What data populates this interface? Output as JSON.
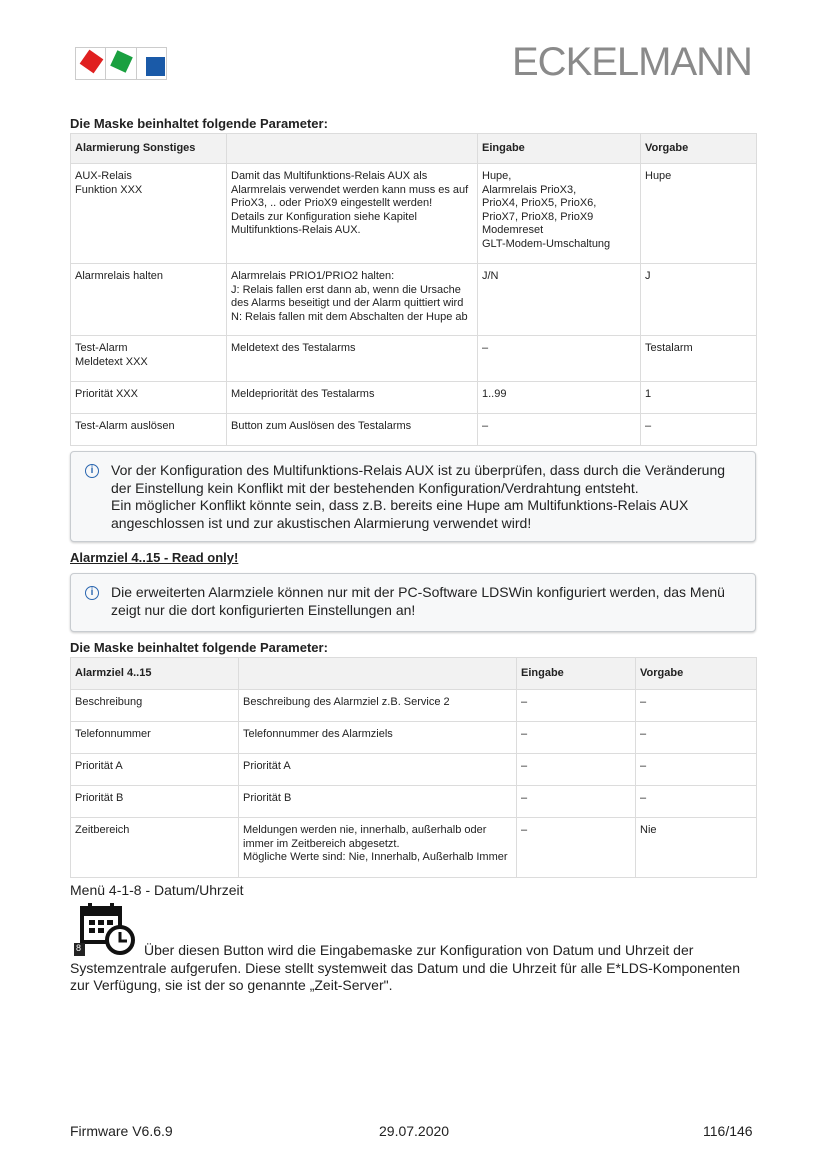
{
  "header": {
    "brand": "ECKELMANN",
    "logo_colors": [
      "#e02020",
      "#1aa040",
      "#1a5aa8"
    ]
  },
  "section1": {
    "heading": "Die Maske beinhaltet folgende Parameter:",
    "columns": [
      "Alarmierung Sonstiges",
      "",
      "Eingabe",
      "Vorgabe"
    ],
    "rows": [
      [
        "AUX-Relais\nFunktion XXX",
        "Damit das Multifunktions-Relais AUX als\nAlarmrelais verwendet werden kann muss es auf\nPrioX3, .. oder PrioX9 eingestellt werden!\nDetails zur Konfiguration siehe Kapitel\nMultifunktions-Relais AUX.",
        "Hupe,\nAlarmrelais PrioX3,\nPrioX4, PrioX5, PrioX6,\nPrioX7, PrioX8, PrioX9\nModemreset\nGLT-Modem-Umschaltung",
        "Hupe"
      ],
      [
        "Alarmrelais halten",
        "Alarmrelais PRIO1/PRIO2 halten:\nJ: Relais fallen erst dann ab, wenn die Ursache\ndes Alarms beseitigt und der Alarm quittiert wird\nN: Relais fallen mit dem Abschalten der Hupe ab",
        "J/N",
        "J"
      ],
      [
        "Test-Alarm\nMeldetext XXX",
        "Meldetext des Testalarms",
        "–",
        "Testalarm"
      ],
      [
        "Priorität XXX",
        "Meldepriorität des Testalarms",
        "1..99",
        "1"
      ],
      [
        "Test-Alarm auslösen",
        "Button zum Auslösen des Testalarms",
        "–",
        "–"
      ]
    ]
  },
  "info1": "Vor der Konfiguration des Multifunktions-Relais AUX ist zu überprüfen, dass durch die Veränderung der Einstellung kein Konflikt mit der bestehenden Konfiguration/Verdrahtung entsteht.\nEin möglicher Konflikt könnte sein, dass z.B. bereits eine Hupe am Multifunktions-Relais AUX angeschlossen ist und zur akustischen Alarmierung verwendet wird!",
  "alarmziel_heading": "Alarmziel 4..15 - Read only!",
  "info2": "Die erweiterten Alarmziele können nur mit der PC-Software LDSWin konfiguriert werden, das Menü zeigt nur die dort konfigurierten Einstellungen an!",
  "section2": {
    "heading": "Die Maske beinhaltet folgende Parameter:",
    "columns": [
      "Alarmziel 4..15",
      "",
      "Eingabe",
      "Vorgabe"
    ],
    "rows": [
      [
        "Beschreibung",
        "Beschreibung des Alarmziel z.B. Service 2",
        "–",
        "–"
      ],
      [
        "Telefonnummer",
        "Telefonnummer des Alarmziels",
        "–",
        "–"
      ],
      [
        "Priorität A",
        "Priorität A",
        "–",
        "–"
      ],
      [
        "Priorität B",
        "Priorität B",
        "–",
        "–"
      ],
      [
        "Zeitbereich",
        "Meldungen werden nie, innerhalb, außerhalb oder\nimmer im Zeitbereich abgesetzt.\nMögliche Werte sind: Nie, Innerhalb, Außerhalb Immer",
        "–",
        "Nie"
      ]
    ]
  },
  "menu": {
    "title": "Menü 4-1-8 - Datum/Uhrzeit",
    "icon_badge": "8",
    "icon": "calendar-clock-icon",
    "text": "Über diesen Button wird die Eingabemaske zur Konfiguration von Datum und Uhrzeit der Systemzentrale aufgerufen. Diese stellt systemweit das Datum und die Uhrzeit für alle E*LDS-Komponenten zur Verfügung, sie ist der so genannte „Zeit-Server\"."
  },
  "footer": {
    "firmware": "Firmware V6.6.9",
    "date": "29.07.2020",
    "page": "116/146"
  }
}
